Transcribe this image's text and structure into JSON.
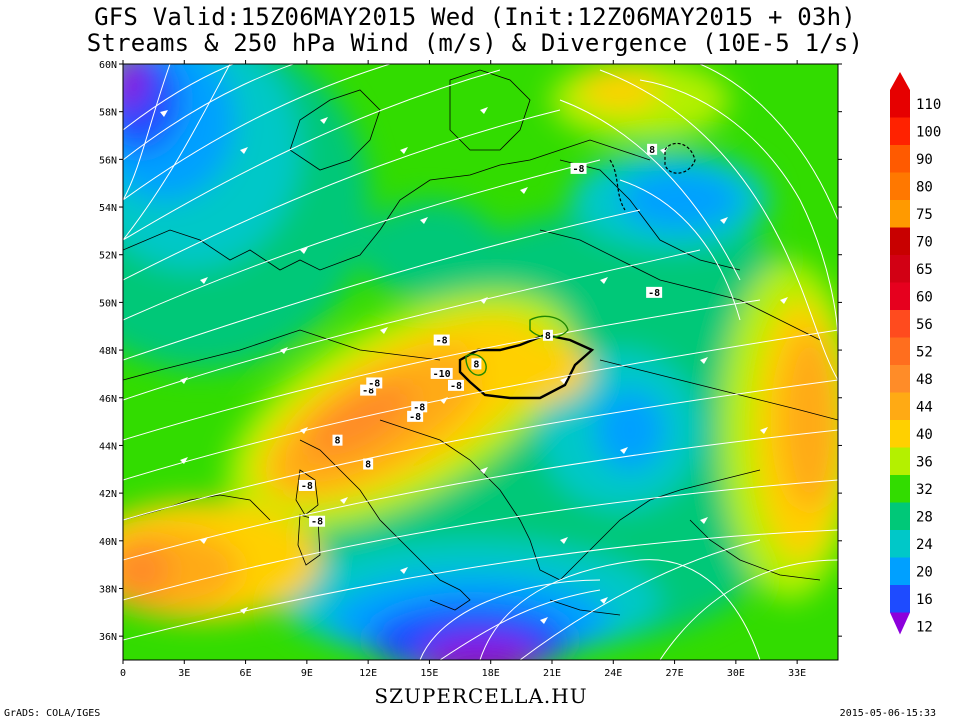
{
  "title": {
    "line1": "GFS Valid:15Z06MAY2015 Wed (Init:12Z06MAY2015 + 03h)",
    "line2": "Streams & 250 hPa Wind (m/s) & Divergence (10E-5 1/s)"
  },
  "axes": {
    "lat_labels": [
      "60N",
      "58N",
      "56N",
      "54N",
      "52N",
      "50N",
      "48N",
      "46N",
      "44N",
      "42N",
      "40N",
      "38N",
      "36N"
    ],
    "lon_labels": [
      "0",
      "3E",
      "6E",
      "9E",
      "12E",
      "15E",
      "18E",
      "21E",
      "24E",
      "27E",
      "30E",
      "33E"
    ],
    "lat_range": [
      35,
      60
    ],
    "lon_range": [
      0,
      35
    ]
  },
  "legend": {
    "levels": [
      "110",
      "100",
      "90",
      "80",
      "75",
      "70",
      "65",
      "60",
      "56",
      "52",
      "48",
      "44",
      "40",
      "36",
      "32",
      "28",
      "24",
      "20",
      "16",
      "12"
    ],
    "colors": [
      "#e60000",
      "#ff2200",
      "#ff5a00",
      "#ff7800",
      "#ff9a00",
      "#c80000",
      "#d20014",
      "#e6001e",
      "#ff4b1e",
      "#ff6e1e",
      "#ff8c28",
      "#ffaa14",
      "#ffd000",
      "#b4f000",
      "#32dc00",
      "#00c878",
      "#00c8c8",
      "#00a0ff",
      "#1e4bff",
      "#8c00dc"
    ]
  },
  "divergence_labels": [
    "-8",
    "8",
    "-8",
    "-10",
    "-8",
    "8",
    "8",
    "-8",
    "-8",
    "-8",
    "8",
    "-8",
    "-8",
    "8",
    "-8",
    "-8"
  ],
  "site": "SZUPERCELLA.HU",
  "footer": {
    "left": "GrADS: COLA/IGES",
    "right": "2015-05-06-15:33"
  },
  "colors": {
    "purple": "#8c00dc",
    "blue": "#1e4bff",
    "lightblue": "#00a0ff",
    "cyan": "#00c8c8",
    "teal": "#00c878",
    "green": "#32dc00",
    "yellowgreen": "#b4f000",
    "yellow": "#ffd000",
    "orange": "#ffaa14",
    "darkorange": "#ff8c28"
  }
}
